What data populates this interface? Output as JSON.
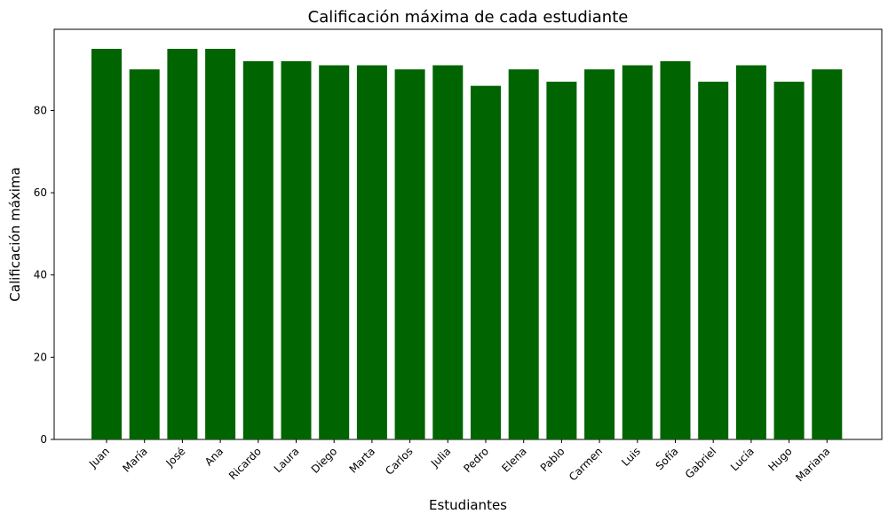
{
  "chart_data": {
    "type": "bar",
    "title": "Calificación máxima de cada estudiante",
    "xlabel": "Estudiantes",
    "ylabel": "Calificación máxima",
    "categories": [
      "Juan",
      "María",
      "José",
      "Ana",
      "Ricardo",
      "Laura",
      "Diego",
      "Marta",
      "Carlos",
      "Julia",
      "Pedro",
      "Elena",
      "Pablo",
      "Carmen",
      "Luis",
      "Sofía",
      "Gabriel",
      "Lucía",
      "Hugo",
      "Mariana"
    ],
    "values": [
      95,
      90,
      95,
      95,
      92,
      92,
      91,
      91,
      90,
      91,
      86,
      90,
      87,
      90,
      91,
      92,
      87,
      91,
      87,
      90
    ],
    "ylim": [
      0,
      99.75
    ],
    "yticks": [
      0,
      20,
      40,
      60,
      80
    ],
    "bar_color": "#006400",
    "grid": false,
    "legend": "none"
  }
}
